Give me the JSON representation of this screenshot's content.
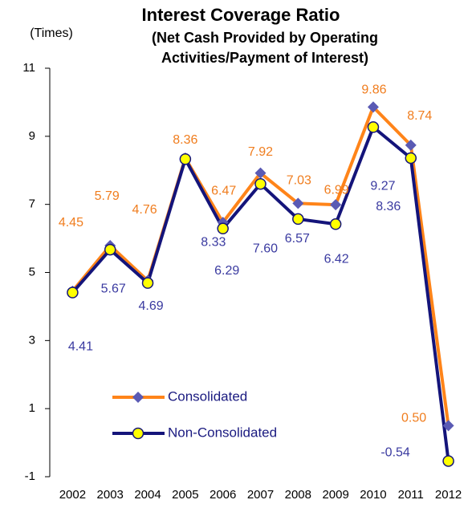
{
  "chart_data": {
    "type": "line",
    "title": "Interest Coverage Ratio",
    "subtitle": [
      "(Net Cash Provided by Operating",
      "Activities/Payment of Interest)"
    ],
    "y_label": "(Times)",
    "categories": [
      "2002",
      "2003",
      "2004",
      "2005",
      "2006",
      "2007",
      "2008",
      "2009",
      "2010",
      "2011",
      "2012"
    ],
    "series": [
      {
        "name": "Consolidated",
        "color": "#ff8419",
        "marker": "diamond",
        "marker_color": "#5a5ab4",
        "label_color": "#f07d1e",
        "values": [
          4.45,
          5.79,
          4.76,
          8.36,
          6.47,
          7.92,
          7.03,
          6.99,
          9.86,
          8.74,
          0.5
        ],
        "value_labels": [
          "4.45",
          "5.79",
          "4.76",
          "8.36",
          "6.47",
          "7.92",
          "7.03",
          "6.99",
          "9.86",
          "8.74",
          "0.50"
        ]
      },
      {
        "name": "Non-Consolidated",
        "color": "#14147a",
        "marker": "circle",
        "marker_color": "#ffff00",
        "label_color": "#3a3aa0",
        "values": [
          4.41,
          5.67,
          4.69,
          8.33,
          6.29,
          7.6,
          6.57,
          6.42,
          9.27,
          8.36,
          -0.54
        ],
        "value_labels": [
          "4.41",
          "5.67",
          "4.69",
          "8.33",
          "6.29",
          "7.60",
          "6.57",
          "6.42",
          "9.27",
          "8.36",
          "-0.54"
        ]
      }
    ],
    "ylim": [
      -1,
      11
    ],
    "yticks": [
      -1,
      1,
      3,
      5,
      7,
      9,
      11
    ],
    "grid": false,
    "legend": "lower left"
  }
}
